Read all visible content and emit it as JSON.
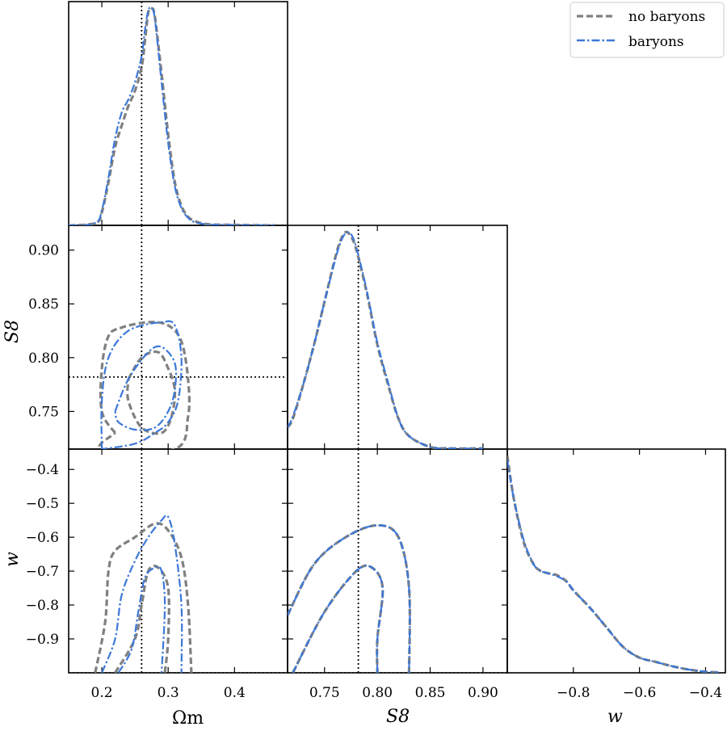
{
  "chart_data": {
    "type": "corner",
    "parameters": [
      "Ωm",
      "S8",
      "w"
    ],
    "axis_labels": {
      "omega_m": "Ωm",
      "s8": "S8",
      "w": "w"
    },
    "ranges": {
      "omega_m": [
        0.15,
        0.48
      ],
      "s8": [
        0.715,
        0.923
      ],
      "w": [
        -1.0,
        -0.34
      ]
    },
    "ticks": {
      "omega_m": [
        0.2,
        0.3,
        0.4
      ],
      "omega_m_labels": [
        "0.2",
        "0.3",
        "0.4"
      ],
      "s8": [
        0.75,
        0.8,
        0.85,
        0.9
      ],
      "s8_labels": [
        "0.75",
        "0.80",
        "0.85",
        "0.90"
      ],
      "w_vertical": [
        -0.9,
        -0.8,
        -0.7,
        -0.6,
        -0.5,
        -0.4
      ],
      "w_vertical_labels": [
        "−0.9",
        "−0.8",
        "−0.7",
        "−0.6",
        "−0.5",
        "−0.4"
      ],
      "w_horizontal": [
        -0.8,
        -0.6,
        -0.4
      ],
      "w_horizontal_labels": [
        "−0.8",
        "−0.6",
        "−0.4"
      ]
    },
    "truth": {
      "omega_m": 0.26,
      "s8": 0.782,
      "w": -1.0
    },
    "legend": {
      "position": "top-right",
      "entries": [
        {
          "name": "no baryons",
          "color": "#808080",
          "style": "dashed"
        },
        {
          "name": "baryons",
          "color": "#3c78d8",
          "style": "dash-dot"
        }
      ]
    },
    "series": [
      {
        "name": "no baryons",
        "color": "#808080",
        "marginals": {
          "omega_m": {
            "x": [
              0.15,
              0.19,
              0.2,
              0.21,
              0.22,
              0.23,
              0.24,
              0.25,
              0.26,
              0.265,
              0.27,
              0.275,
              0.28,
              0.29,
              0.3,
              0.31,
              0.32,
              0.33,
              0.34,
              0.36,
              0.4,
              0.46
            ],
            "y": [
              0,
              0.01,
              0.06,
              0.2,
              0.36,
              0.46,
              0.55,
              0.62,
              0.73,
              0.85,
              0.98,
              1.0,
              0.96,
              0.7,
              0.42,
              0.2,
              0.09,
              0.04,
              0.02,
              0.005,
              0.002,
              0
            ]
          },
          "s8": {
            "x": [
              0.715,
              0.72,
              0.73,
              0.74,
              0.75,
              0.76,
              0.765,
              0.77,
              0.775,
              0.78,
              0.79,
              0.8,
              0.81,
              0.82,
              0.83,
              0.85,
              0.87,
              0.9
            ],
            "y": [
              0.1,
              0.14,
              0.3,
              0.48,
              0.68,
              0.88,
              0.96,
              1.0,
              0.98,
              0.92,
              0.72,
              0.48,
              0.3,
              0.14,
              0.06,
              0.01,
              0.003,
              0.003
            ]
          },
          "w": {
            "x": [
              -1.0,
              -0.98,
              -0.95,
              -0.92,
              -0.9,
              -0.88,
              -0.85,
              -0.82,
              -0.8,
              -0.75,
              -0.7,
              -0.65,
              -0.6,
              -0.55,
              -0.5,
              -0.45,
              -0.4,
              -0.36
            ],
            "y": [
              1.0,
              0.8,
              0.6,
              0.5,
              0.47,
              0.46,
              0.45,
              0.42,
              0.38,
              0.3,
              0.21,
              0.12,
              0.07,
              0.05,
              0.03,
              0.015,
              0.005,
              0.002
            ]
          }
        },
        "contours_s8_vs_omega_m": {
          "outer": [
            [
              0.22,
              0.73
            ],
            [
              0.2,
              0.75
            ],
            [
              0.2,
              0.79
            ],
            [
              0.21,
              0.82
            ],
            [
              0.23,
              0.828
            ],
            [
              0.27,
              0.833
            ],
            [
              0.3,
              0.83
            ],
            [
              0.32,
              0.815
            ],
            [
              0.33,
              0.78
            ],
            [
              0.33,
              0.745
            ],
            [
              0.31,
              0.715
            ],
            [
              0.2,
              0.715
            ],
            [
              0.22,
              0.73
            ]
          ],
          "inner": [
            [
              0.24,
              0.78
            ],
            [
              0.26,
              0.8
            ],
            [
              0.285,
              0.805
            ],
            [
              0.3,
              0.79
            ],
            [
              0.31,
              0.77
            ],
            [
              0.305,
              0.745
            ],
            [
              0.29,
              0.73
            ],
            [
              0.26,
              0.735
            ],
            [
              0.24,
              0.76
            ],
            [
              0.24,
              0.78
            ]
          ]
        },
        "contours_w_vs_omega_m": {
          "outer": [
            [
              0.19,
              -1.0
            ],
            [
              0.205,
              -0.85
            ],
            [
              0.21,
              -0.7
            ],
            [
              0.22,
              -0.64
            ],
            [
              0.25,
              -0.6
            ],
            [
              0.28,
              -0.56
            ],
            [
              0.3,
              -0.58
            ],
            [
              0.32,
              -0.66
            ],
            [
              0.33,
              -0.8
            ],
            [
              0.335,
              -1.0
            ]
          ],
          "inner": [
            [
              0.22,
              -1.0
            ],
            [
              0.25,
              -0.9
            ],
            [
              0.26,
              -0.8
            ],
            [
              0.27,
              -0.7
            ],
            [
              0.285,
              -0.69
            ],
            [
              0.3,
              -0.75
            ],
            [
              0.3,
              -0.9
            ],
            [
              0.295,
              -1.0
            ]
          ]
        },
        "contours_w_vs_s8": {
          "outer": [
            [
              0.715,
              -0.83
            ],
            [
              0.74,
              -0.68
            ],
            [
              0.77,
              -0.6
            ],
            [
              0.8,
              -0.565
            ],
            [
              0.82,
              -0.6
            ],
            [
              0.83,
              -0.75
            ],
            [
              0.83,
              -1.0
            ]
          ],
          "inner": [
            [
              0.72,
              -1.0
            ],
            [
              0.75,
              -0.82
            ],
            [
              0.78,
              -0.7
            ],
            [
              0.795,
              -0.69
            ],
            [
              0.805,
              -0.75
            ],
            [
              0.8,
              -0.9
            ],
            [
              0.8,
              -1.0
            ]
          ]
        }
      },
      {
        "name": "baryons",
        "color": "#3c78d8",
        "marginals": {
          "omega_m": {
            "x": [
              0.15,
              0.19,
              0.2,
              0.21,
              0.22,
              0.23,
              0.24,
              0.25,
              0.26,
              0.265,
              0.27,
              0.275,
              0.28,
              0.29,
              0.3,
              0.31,
              0.32,
              0.33,
              0.34,
              0.36,
              0.4,
              0.46
            ],
            "y": [
              0,
              0.01,
              0.07,
              0.22,
              0.4,
              0.52,
              0.58,
              0.66,
              0.78,
              0.9,
              0.99,
              1.0,
              0.95,
              0.66,
              0.38,
              0.18,
              0.08,
              0.035,
              0.015,
              0.004,
              0.002,
              0
            ]
          },
          "s8": {
            "x": [
              0.715,
              0.72,
              0.73,
              0.74,
              0.75,
              0.76,
              0.765,
              0.77,
              0.775,
              0.78,
              0.79,
              0.8,
              0.81,
              0.82,
              0.83,
              0.85,
              0.87,
              0.9
            ],
            "y": [
              0.1,
              0.15,
              0.3,
              0.48,
              0.68,
              0.87,
              0.95,
              0.995,
              0.99,
              0.93,
              0.73,
              0.49,
              0.31,
              0.14,
              0.06,
              0.01,
              0.003,
              0.003
            ]
          },
          "w": {
            "x": [
              -1.0,
              -0.98,
              -0.95,
              -0.92,
              -0.9,
              -0.88,
              -0.85,
              -0.82,
              -0.8,
              -0.75,
              -0.7,
              -0.65,
              -0.6,
              -0.55,
              -0.5,
              -0.45,
              -0.4,
              -0.36
            ],
            "y": [
              0.98,
              0.8,
              0.61,
              0.5,
              0.47,
              0.46,
              0.445,
              0.42,
              0.38,
              0.3,
              0.21,
              0.12,
              0.07,
              0.05,
              0.03,
              0.015,
              0.005,
              0.002
            ]
          }
        },
        "contours_s8_vs_omega_m": {
          "outer": [
            [
              0.2,
              0.715
            ],
            [
              0.2,
              0.76
            ],
            [
              0.21,
              0.8
            ],
            [
              0.24,
              0.825
            ],
            [
              0.29,
              0.833
            ],
            [
              0.31,
              0.83
            ],
            [
              0.32,
              0.8
            ],
            [
              0.315,
              0.76
            ],
            [
              0.3,
              0.74
            ],
            [
              0.28,
              0.73
            ],
            [
              0.25,
              0.72
            ],
            [
              0.2,
              0.715
            ]
          ],
          "inner": [
            [
              0.22,
              0.75
            ],
            [
              0.24,
              0.78
            ],
            [
              0.27,
              0.805
            ],
            [
              0.29,
              0.81
            ],
            [
              0.31,
              0.795
            ],
            [
              0.31,
              0.77
            ],
            [
              0.3,
              0.75
            ],
            [
              0.28,
              0.735
            ],
            [
              0.25,
              0.733
            ],
            [
              0.225,
              0.74
            ],
            [
              0.22,
              0.75
            ]
          ]
        },
        "contours_w_vs_omega_m": {
          "outer": [
            [
              0.2,
              -1.0
            ],
            [
              0.22,
              -0.9
            ],
            [
              0.23,
              -0.77
            ],
            [
              0.25,
              -0.67
            ],
            [
              0.27,
              -0.6
            ],
            [
              0.29,
              -0.55
            ],
            [
              0.3,
              -0.54
            ],
            [
              0.31,
              -0.62
            ],
            [
              0.32,
              -0.8
            ],
            [
              0.32,
              -1.0
            ]
          ],
          "inner": [
            [
              0.225,
              -1.0
            ],
            [
              0.245,
              -0.93
            ],
            [
              0.255,
              -0.82
            ],
            [
              0.265,
              -0.72
            ],
            [
              0.28,
              -0.69
            ],
            [
              0.29,
              -0.7
            ],
            [
              0.295,
              -0.8
            ],
            [
              0.29,
              -1.0
            ]
          ]
        },
        "contours_w_vs_s8": {
          "outer": [
            [
              0.715,
              -0.83
            ],
            [
              0.74,
              -0.68
            ],
            [
              0.77,
              -0.6
            ],
            [
              0.8,
              -0.565
            ],
            [
              0.82,
              -0.6
            ],
            [
              0.83,
              -0.75
            ],
            [
              0.83,
              -1.0
            ]
          ],
          "inner": [
            [
              0.72,
              -1.0
            ],
            [
              0.75,
              -0.82
            ],
            [
              0.78,
              -0.7
            ],
            [
              0.795,
              -0.69
            ],
            [
              0.805,
              -0.75
            ],
            [
              0.8,
              -0.9
            ],
            [
              0.8,
              -1.0
            ]
          ]
        }
      }
    ]
  }
}
